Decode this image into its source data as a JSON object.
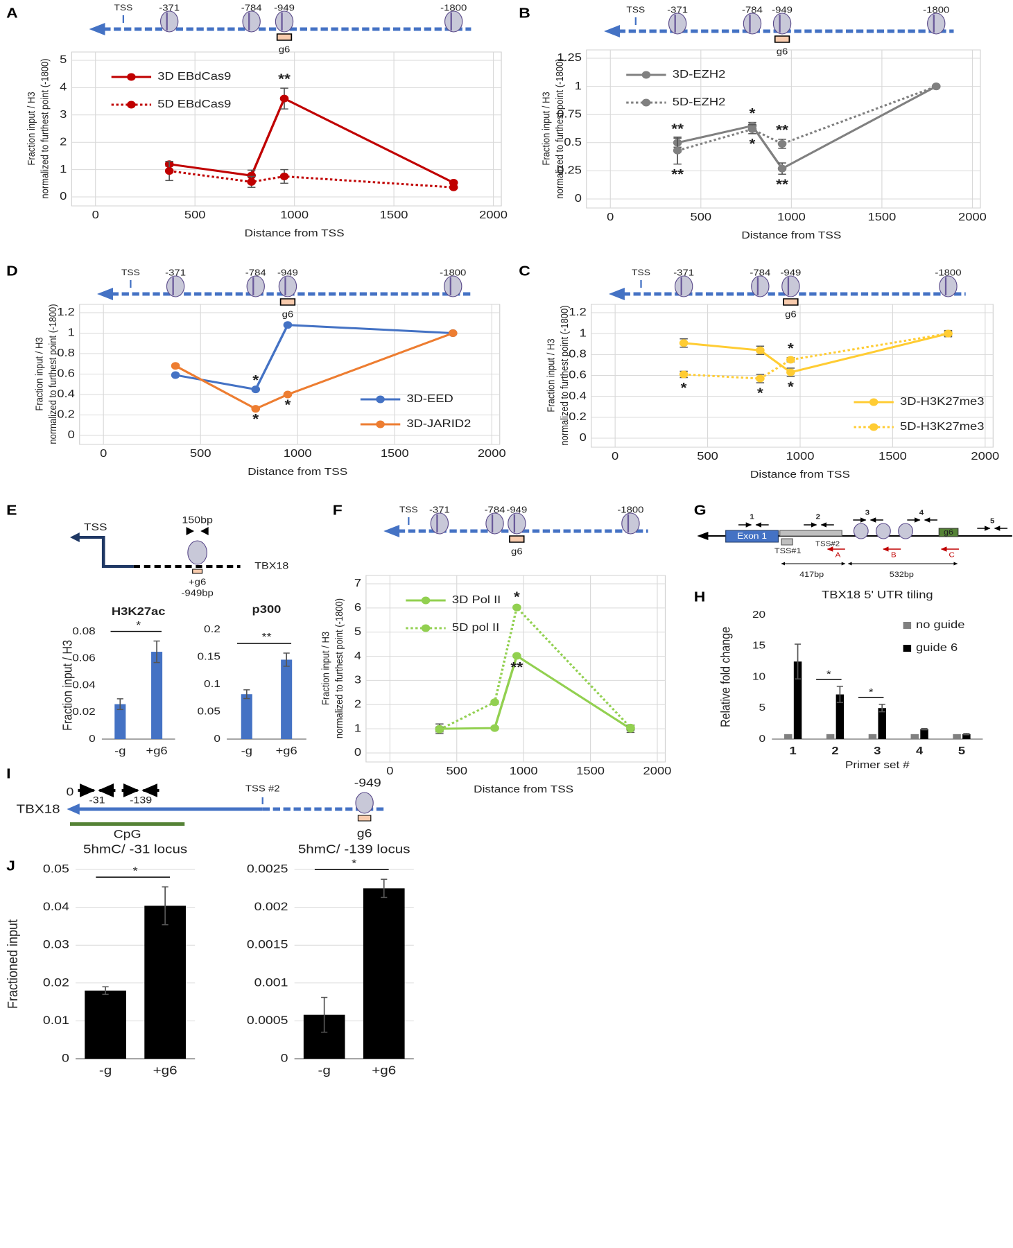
{
  "chart_data": [
    {
      "panel": "A",
      "type": "line",
      "x": [
        371,
        784,
        949,
        1800
      ],
      "xlim": [
        0,
        2000
      ],
      "xticks": [
        0,
        500,
        1000,
        1500,
        2000
      ],
      "ylim": [
        0,
        5
      ],
      "yticks": [
        0,
        1,
        2,
        3,
        4,
        5
      ],
      "xlabel": "Distance from TSS",
      "ylabel": [
        "Fraction input / H3",
        "normalized to furthest point (-1800)"
      ],
      "grid": "both",
      "legend": "upper left",
      "diagram": {
        "tss": "TSS",
        "sites": [
          "-371",
          "-784",
          "-949",
          "-1800"
        ],
        "guide": "g6"
      },
      "series": [
        {
          "name": "3D EBdCas9",
          "color": "#c00000",
          "style": "solid",
          "values": [
            1.2,
            0.78,
            3.6,
            0.52
          ],
          "errors": [
            0.08,
            0.2,
            0.38,
            0.05
          ],
          "point_labels": [
            null,
            null,
            "**",
            null
          ]
        },
        {
          "name": "5D EBdCas9",
          "color": "#c00000",
          "style": "dotted",
          "values": [
            0.95,
            0.55,
            0.75,
            0.35
          ],
          "errors": [
            0.35,
            0.2,
            0.25,
            0.04
          ]
        }
      ]
    },
    {
      "panel": "B",
      "type": "line",
      "x": [
        371,
        784,
        949,
        1800
      ],
      "xlim": [
        0,
        2000
      ],
      "xticks": [
        0,
        500,
        1000,
        1500,
        2000
      ],
      "ylim": [
        0,
        1.25
      ],
      "yticks": [
        0,
        0.25,
        0.5,
        0.75,
        1,
        1.25
      ],
      "xlabel": "Distance from TSS",
      "ylabel": [
        "Fraction input / H3",
        "normalized to furthest point (-1800)"
      ],
      "grid": "both",
      "legend": "upper left",
      "diagram": {
        "tss": "TSS",
        "sites": [
          "-371",
          "-784",
          "-949",
          "-1800"
        ],
        "guide": "g6"
      },
      "series": [
        {
          "name": "3D-EZH2",
          "color": "#808080",
          "style": "solid",
          "values": [
            0.5,
            0.65,
            0.27,
            1
          ],
          "errors": [
            0.04,
            0.03,
            0.05,
            0.01
          ],
          "point_labels": [
            "**",
            "*",
            "**",
            null
          ]
        },
        {
          "name": "5D-EZH2",
          "color": "#808080",
          "style": "dotted",
          "values": [
            0.43,
            0.62,
            0.49,
            1
          ],
          "errors": [
            0.12,
            0.04,
            0.04,
            0.01
          ],
          "point_labels": [
            "**",
            "*",
            "**",
            null
          ]
        }
      ]
    },
    {
      "panel": "D",
      "type": "line",
      "x": [
        371,
        784,
        949,
        1800
      ],
      "xlim": [
        0,
        2000
      ],
      "xticks": [
        0,
        500,
        1000,
        1500,
        2000
      ],
      "ylim": [
        0,
        1.2
      ],
      "yticks": [
        0,
        0.2,
        0.4,
        0.6,
        0.8,
        1,
        1.2
      ],
      "xlabel": "Distance from TSS",
      "ylabel": [
        "Fraction input / H3",
        "normalized to furthest point (-1800)"
      ],
      "grid": "both",
      "legend": "lower right",
      "diagram": {
        "tss": "TSS",
        "sites": [
          "-371",
          "-784",
          "-949",
          "-1800"
        ],
        "guide": "g6"
      },
      "series": [
        {
          "name": "3D-EED",
          "color": "#4472c4",
          "style": "solid",
          "values": [
            0.59,
            0.45,
            1.08,
            1
          ],
          "point_labels": [
            null,
            "*",
            null,
            null
          ]
        },
        {
          "name": "3D-JARID2",
          "color": "#ed7d31",
          "style": "solid",
          "values": [
            0.68,
            0.26,
            0.4,
            1
          ],
          "point_labels": [
            null,
            "*",
            "*",
            null
          ]
        }
      ]
    },
    {
      "panel": "C",
      "type": "line",
      "x": [
        371,
        784,
        949,
        1800
      ],
      "xlim": [
        0,
        2000
      ],
      "xticks": [
        0,
        500,
        1000,
        1500,
        2000
      ],
      "ylim": [
        0,
        1.2
      ],
      "yticks": [
        0,
        0.2,
        0.4,
        0.6,
        0.8,
        1,
        1.2
      ],
      "xlabel": "Distance from TSS",
      "ylabel": [
        "Fraction input / H3",
        "normalized to furthest point (-1800)"
      ],
      "grid": "both",
      "legend": "lower right",
      "diagram": {
        "tss": "TSS",
        "sites": [
          "-371",
          "-784",
          "-949",
          "-1800"
        ],
        "guide": "g6"
      },
      "series": [
        {
          "name": "3D-H3K27me3",
          "color": "#ffcc33",
          "style": "solid",
          "values": [
            0.91,
            0.84,
            0.63,
            1
          ],
          "errors": [
            0.04,
            0.04,
            0.04,
            0.03
          ],
          "point_labels": [
            null,
            null,
            "*",
            null
          ]
        },
        {
          "name": "5D-H3K27me3",
          "color": "#ffcc33",
          "style": "dotted",
          "values": [
            0.61,
            0.57,
            0.75,
            1
          ],
          "errors": [
            0.03,
            0.04,
            0.02,
            0.02
          ],
          "point_labels": [
            "*",
            "*",
            "*",
            null
          ]
        }
      ]
    },
    {
      "panel": "F",
      "type": "line",
      "x": [
        371,
        784,
        949,
        1800
      ],
      "xlim": [
        0,
        2000
      ],
      "xticks": [
        0,
        500,
        1000,
        1500,
        2000
      ],
      "ylim": [
        0,
        7
      ],
      "yticks": [
        0,
        1,
        2,
        3,
        4,
        5,
        6,
        7
      ],
      "xlabel": "Distance from TSS",
      "ylabel": [
        "Fraction input / H3",
        "normalized to furthest point (-1800)"
      ],
      "grid": "both",
      "legend": "upper left",
      "diagram": {
        "tss": "TSS",
        "sites": [
          "-371",
          "-784",
          "-949",
          "-1800"
        ],
        "guide": "g6"
      },
      "series": [
        {
          "name": "3D Pol II",
          "color": "#92d050",
          "style": "solid",
          "values": [
            1,
            1.03,
            4.02,
            1
          ],
          "errors": [
            0.2,
            0.05,
            0.05,
            0.15
          ],
          "point_labels": [
            null,
            null,
            "**",
            null
          ]
        },
        {
          "name": "5D pol II",
          "color": "#92d050",
          "style": "dotted",
          "values": [
            0.97,
            2.1,
            6.02,
            1.05
          ],
          "errors": [
            0.1,
            0.05,
            0.05,
            0.1
          ],
          "point_labels": [
            null,
            null,
            "*",
            null
          ]
        }
      ]
    },
    {
      "panel": "E",
      "type": "bar",
      "title": "H3K27ac",
      "categories": [
        "-g",
        "+g6"
      ],
      "values": [
        0.026,
        0.065
      ],
      "errors": [
        0.004,
        0.008
      ],
      "color": "#4472c4",
      "ylim": [
        0,
        0.08
      ],
      "yticks": [
        0,
        0.02,
        0.04,
        0.06,
        0.08
      ],
      "ylabel": "Fraction input / H3",
      "significance": "*",
      "grid": "none"
    },
    {
      "type": "bar",
      "title": "p300",
      "categories": [
        "-g",
        "+g6"
      ],
      "values": [
        0.082,
        0.145
      ],
      "errors": [
        0.008,
        0.012
      ],
      "color": "#4472c4",
      "ylim": [
        0,
        0.2
      ],
      "yticks": [
        0,
        0.05,
        0.1,
        0.15,
        0.2
      ],
      "significance": "**",
      "grid": "none"
    },
    {
      "panel": "H",
      "type": "bar",
      "title": "TBX18 5' UTR tiling",
      "categories": [
        "1",
        "2",
        "3",
        "4",
        "5"
      ],
      "xlabel": "Primer set #",
      "ylabel": "Relative fold change",
      "ylim": [
        0,
        20
      ],
      "yticks": [
        0,
        5,
        10,
        15,
        20
      ],
      "legend": "upper right",
      "grid": "none",
      "series": [
        {
          "name": "no guide",
          "color": "#808080",
          "values": [
            0.8,
            0.8,
            0.8,
            0.8,
            0.8
          ]
        },
        {
          "name": "guide 6",
          "color": "#000000",
          "values": [
            12.5,
            7.2,
            5.0,
            1.6,
            0.8
          ],
          "errors": [
            2.8,
            1.3,
            0.6,
            0.1,
            0.1
          ]
        }
      ],
      "significance": [
        null,
        "*",
        "*",
        null,
        null
      ]
    },
    {
      "panel": "J",
      "type": "bar",
      "title": "5hmC/ -31 locus",
      "categories": [
        "-g",
        "+g6"
      ],
      "values": [
        0.018,
        0.0404
      ],
      "errors": [
        0.001,
        0.005
      ],
      "color": "#000000",
      "ylim": [
        0,
        0.05
      ],
      "yticks": [
        0,
        0.01,
        0.02,
        0.03,
        0.04,
        0.05
      ],
      "ylabel": "Fractioned input",
      "significance": "*",
      "grid": "y"
    },
    {
      "type": "bar",
      "title": "5hmC/ -139 locus",
      "categories": [
        "-g",
        "+g6"
      ],
      "values": [
        0.00058,
        0.00225
      ],
      "errors": [
        0.00023,
        0.00012
      ],
      "color": "#000000",
      "ylim": [
        0,
        0.0025
      ],
      "yticks": [
        0,
        0.0005,
        0.001,
        0.0015,
        0.002,
        0.0025
      ],
      "significance": "*",
      "grid": "y"
    }
  ],
  "diagrams": [
    {
      "tss": "TSS",
      "size": "150bp",
      "guide": "+g6",
      "position": "-949bp",
      "gene": "TBX18"
    },
    {
      "panel": "G",
      "exon": "Exon 1",
      "primers": [
        "1",
        "2",
        "3",
        "4",
        "5"
      ],
      "tss1": "TSS#1",
      "tss2": "TSS#2",
      "reverse_primers": [
        "A",
        "B",
        "C"
      ],
      "distances": [
        "417bp",
        "532bp"
      ],
      "guide": "g6"
    },
    {
      "panel": "I",
      "start": "0",
      "primer_sites": [
        "-31",
        "-139"
      ],
      "gene": "TBX18",
      "tss": "TSS #2",
      "site": "-949",
      "region": "CpG",
      "guide": "g6"
    }
  ]
}
